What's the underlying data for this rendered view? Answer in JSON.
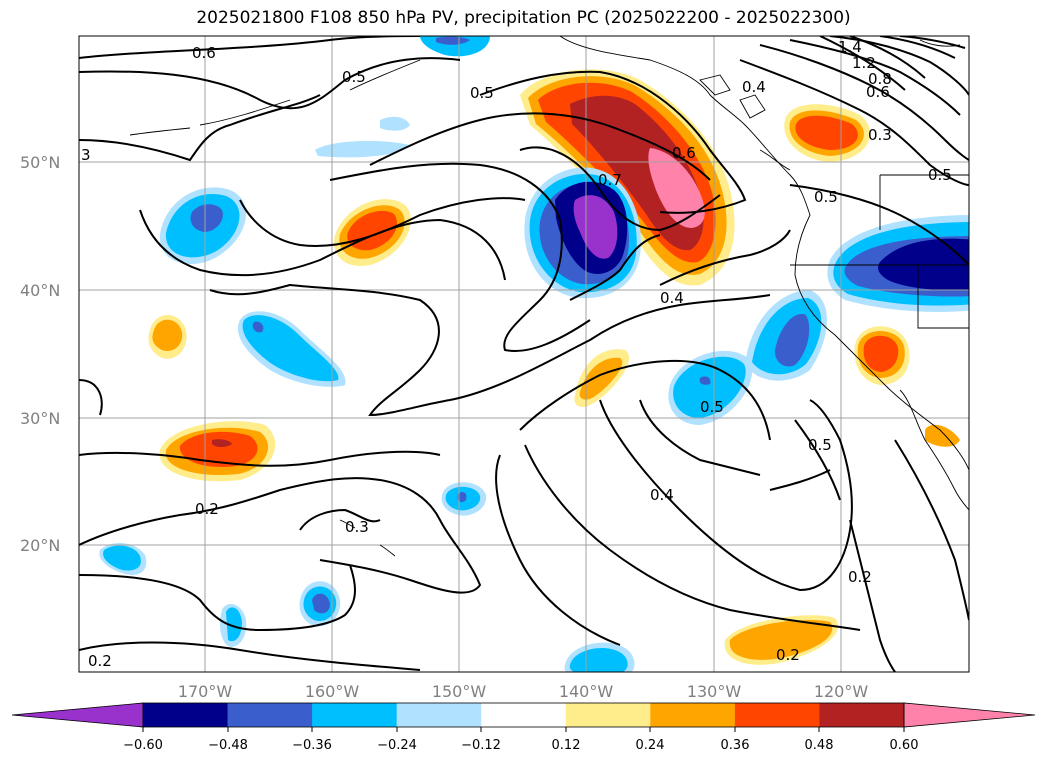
{
  "title": "2025021800 F108 850 hPa PV, precipitation PC (2025022200 - 2025022300)",
  "lat_labels": [
    "50°N",
    "40°N",
    "30°N",
    "20°N"
  ],
  "lon_labels": [
    "170°W",
    "160°W",
    "150°W",
    "140°W",
    "130°W",
    "120°W"
  ],
  "contour_labels": [
    "0.6",
    "0.5",
    "3",
    "0.5",
    "0.7",
    "0.6",
    "0.4",
    "1.4",
    "1.2",
    "0.8",
    "0.6",
    "0.3",
    "0.5",
    "0.5",
    "0.4",
    "0.5",
    "0.4",
    "0.5",
    "0.2",
    "0.3",
    "0.2",
    "0.2",
    "0.2"
  ],
  "colorbar": {
    "ticks": [
      "−0.60",
      "−0.48",
      "−0.36",
      "−0.24",
      "−0.12",
      "0.12",
      "0.24",
      "0.36",
      "0.48",
      "0.60"
    ],
    "colors": [
      "#9932cc",
      "#00008b",
      "#3a5fcd",
      "#00bfff",
      "#b0e2ff",
      "#ffffff",
      "#ffec8b",
      "#ffa500",
      "#ff4500",
      "#b22222",
      "#ff82ab"
    ]
  }
}
